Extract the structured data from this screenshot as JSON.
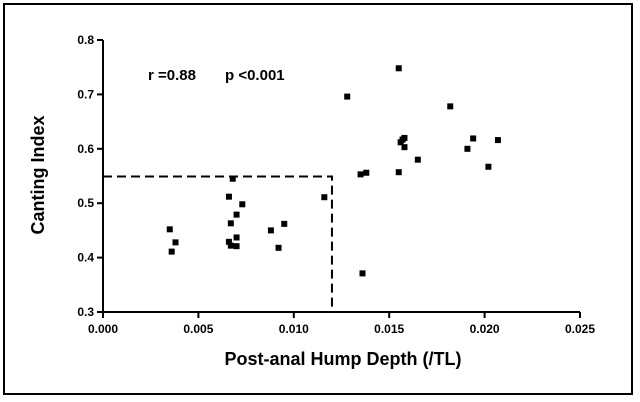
{
  "chart_data": {
    "type": "scatter",
    "title": "",
    "xlabel": "Post-anal Hump Depth (/TL)",
    "ylabel": "Canting Index",
    "xlim": [
      0.0,
      0.025
    ],
    "ylim": [
      0.3,
      0.8
    ],
    "xticks": [
      "0.000",
      "0.005",
      "0.010",
      "0.015",
      "0.020",
      "0.025"
    ],
    "xtick_values": [
      0.0,
      0.005,
      0.01,
      0.015,
      0.02,
      0.025
    ],
    "yticks": [
      "0.3",
      "0.4",
      "0.5",
      "0.6",
      "0.7",
      "0.8"
    ],
    "ytick_values": [
      0.3,
      0.4,
      0.5,
      0.6,
      0.7,
      0.8
    ],
    "grid": false,
    "annotations": {
      "r_text": "r =0.88",
      "p_text": "p <0.001"
    },
    "threshold_box": {
      "x": 0.012,
      "y": 0.549
    },
    "points": [
      {
        "x": 0.0035,
        "y": 0.452
      },
      {
        "x": 0.0038,
        "y": 0.428
      },
      {
        "x": 0.0036,
        "y": 0.411
      },
      {
        "x": 0.0066,
        "y": 0.512
      },
      {
        "x": 0.0068,
        "y": 0.545
      },
      {
        "x": 0.0073,
        "y": 0.498
      },
      {
        "x": 0.007,
        "y": 0.479
      },
      {
        "x": 0.0067,
        "y": 0.463
      },
      {
        "x": 0.007,
        "y": 0.437
      },
      {
        "x": 0.0066,
        "y": 0.429
      },
      {
        "x": 0.0067,
        "y": 0.422
      },
      {
        "x": 0.007,
        "y": 0.421
      },
      {
        "x": 0.0088,
        "y": 0.45
      },
      {
        "x": 0.0095,
        "y": 0.462
      },
      {
        "x": 0.0092,
        "y": 0.418
      },
      {
        "x": 0.0116,
        "y": 0.511
      },
      {
        "x": 0.0128,
        "y": 0.696
      },
      {
        "x": 0.0135,
        "y": 0.553
      },
      {
        "x": 0.0138,
        "y": 0.556
      },
      {
        "x": 0.0136,
        "y": 0.371
      },
      {
        "x": 0.0155,
        "y": 0.748
      },
      {
        "x": 0.0157,
        "y": 0.617
      },
      {
        "x": 0.0156,
        "y": 0.612
      },
      {
        "x": 0.0158,
        "y": 0.62
      },
      {
        "x": 0.0158,
        "y": 0.603
      },
      {
        "x": 0.0155,
        "y": 0.557
      },
      {
        "x": 0.0165,
        "y": 0.58
      },
      {
        "x": 0.0182,
        "y": 0.678
      },
      {
        "x": 0.0194,
        "y": 0.619
      },
      {
        "x": 0.0191,
        "y": 0.6
      },
      {
        "x": 0.0202,
        "y": 0.567
      },
      {
        "x": 0.0207,
        "y": 0.616
      }
    ]
  }
}
